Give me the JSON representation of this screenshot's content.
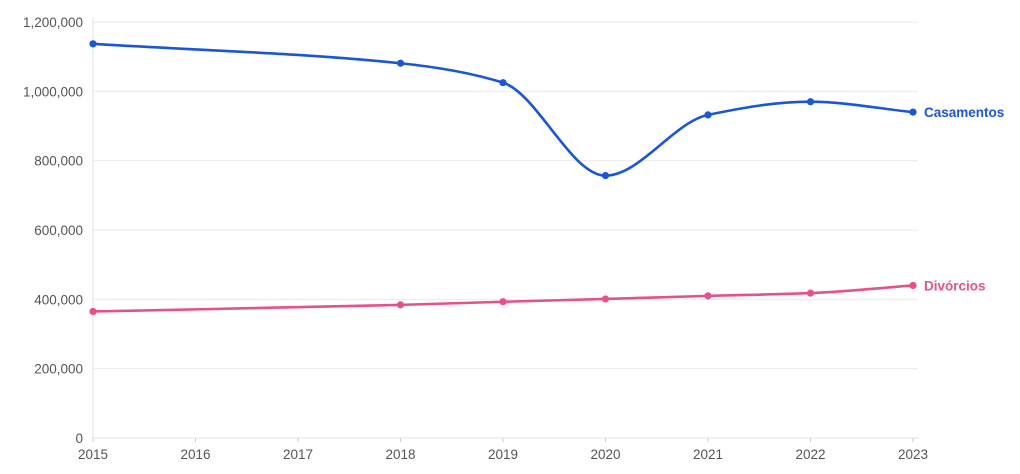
{
  "chart_data": {
    "type": "line",
    "title": "",
    "xlabel": "",
    "ylabel": "",
    "x_ticks": [
      "2015",
      "2016",
      "2017",
      "2018",
      "2019",
      "2020",
      "2021",
      "2022",
      "2023"
    ],
    "y_ticks": [
      "0",
      "200,000",
      "400,000",
      "600,000",
      "800,000",
      "1,000,000",
      "1,200,000"
    ],
    "ylim": [
      0,
      1200000
    ],
    "xlim": [
      2015,
      2023
    ],
    "grid": true,
    "legend": "inline-right",
    "series": [
      {
        "name": "Casamentos",
        "color": "#1a56d6",
        "points": [
          {
            "x": 2015,
            "y": 1137000
          },
          {
            "x": 2018,
            "y": 1081000
          },
          {
            "x": 2019,
            "y": 1025000
          },
          {
            "x": 2020,
            "y": 757000
          },
          {
            "x": 2021,
            "y": 932000
          },
          {
            "x": 2022,
            "y": 970000
          },
          {
            "x": 2023,
            "y": 940000
          }
        ]
      },
      {
        "name": "Divórcios",
        "color": "#e8508a",
        "points": [
          {
            "x": 2015,
            "y": 365000
          },
          {
            "x": 2018,
            "y": 384000
          },
          {
            "x": 2019,
            "y": 393000
          },
          {
            "x": 2020,
            "y": 401000
          },
          {
            "x": 2021,
            "y": 410000
          },
          {
            "x": 2022,
            "y": 418000
          },
          {
            "x": 2023,
            "y": 440000
          }
        ]
      }
    ]
  }
}
